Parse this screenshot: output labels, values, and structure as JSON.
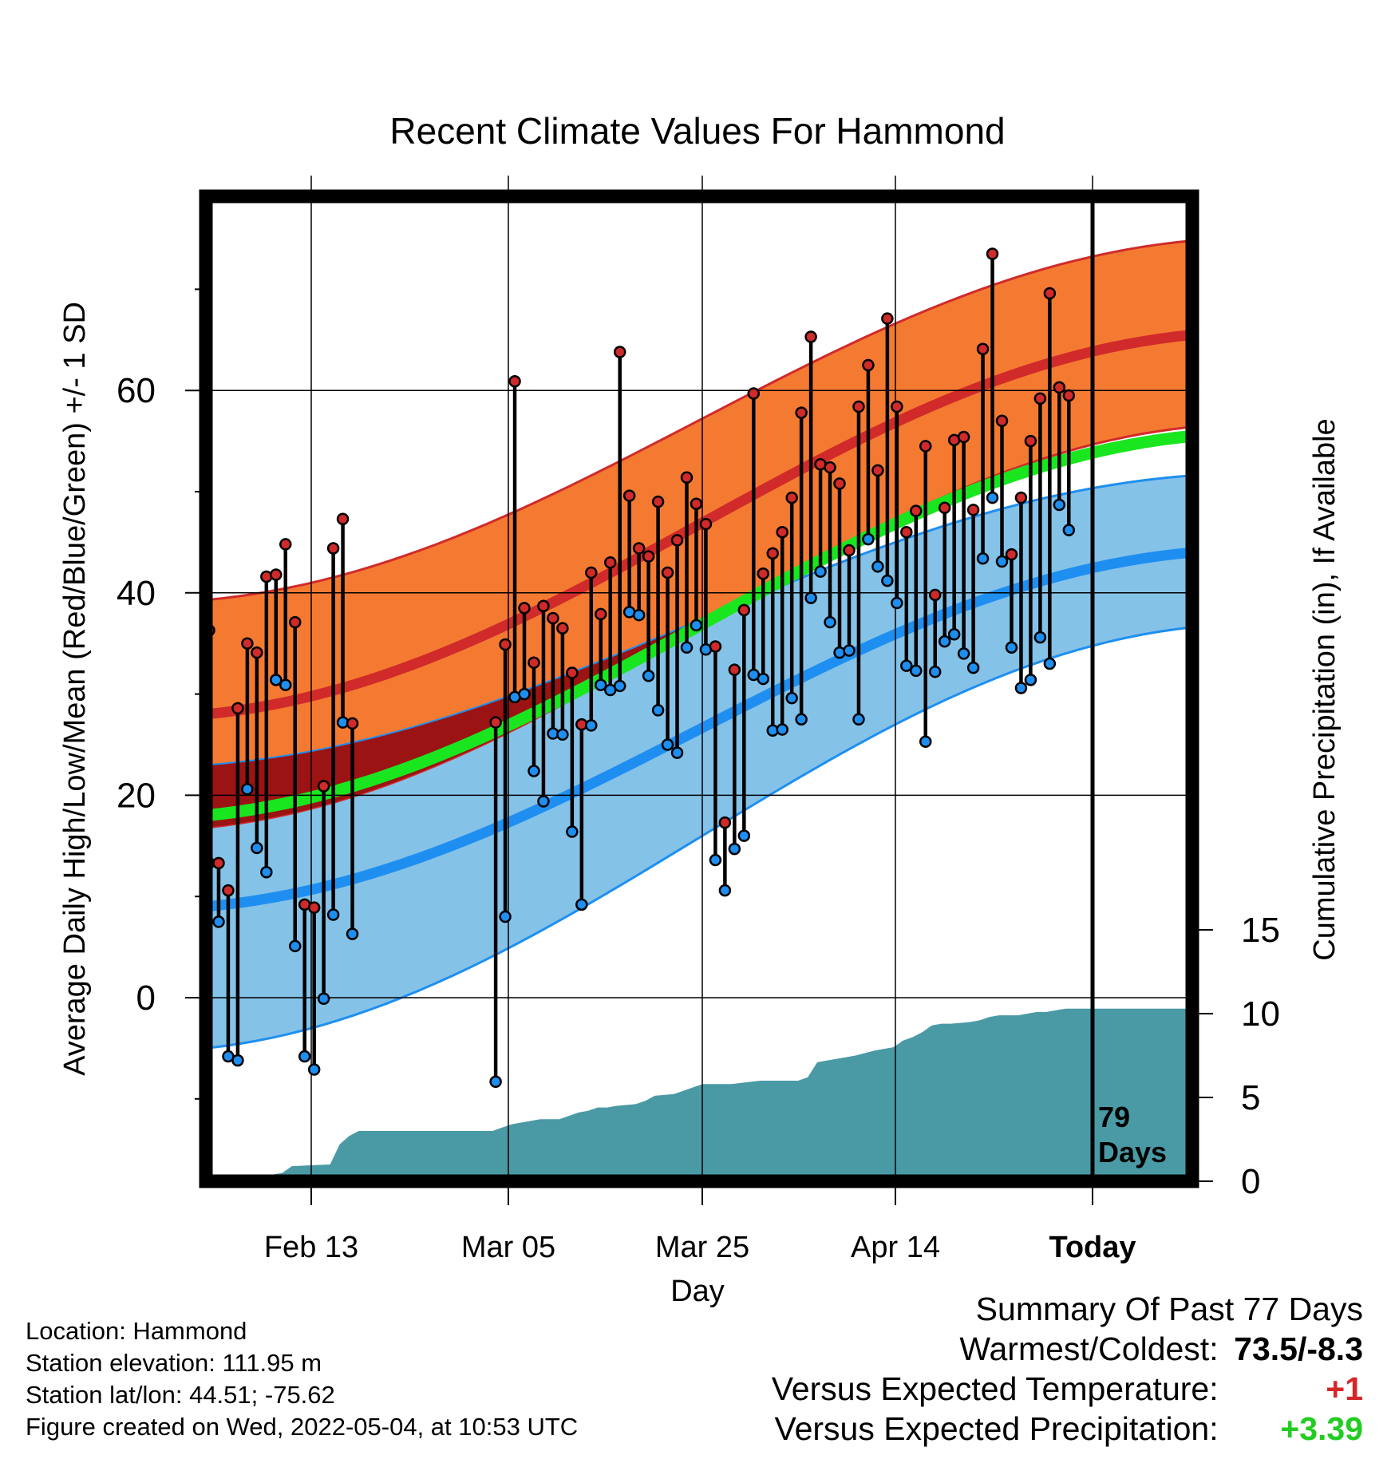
{
  "chart_data": {
    "type": "line",
    "title": "Recent Climate Values For Hammond",
    "xlabel": "Day",
    "ylabel": "Average Daily High/Low/Mean (Red/Blue/Green) +/- 1 SD",
    "y2label": "Cumulative Precipitation (in), If Available",
    "x_ticks": [
      "Feb 13",
      "Mar 05",
      "Mar 25",
      "Apr 14",
      "Today"
    ],
    "ylim": [
      -18,
      79
    ],
    "y_ticks": [
      0,
      20,
      40,
      60
    ],
    "y2lim": [
      0,
      35
    ],
    "y2_ticks": [
      0,
      5,
      10,
      15
    ],
    "today_marker": "79\nDays",
    "grid": true,
    "normals": {
      "high": {
        "start": 28.0,
        "end": 65.5
      },
      "high_upper": {
        "start": 39.3,
        "end": 74.8
      },
      "high_lower": {
        "start": 16.8,
        "end": 56.4
      },
      "low": {
        "start": 9.0,
        "end": 44.0
      },
      "low_upper": {
        "start": 23.0,
        "end": 51.6
      },
      "low_lower": {
        "start": -5.0,
        "end": 36.6
      },
      "mean": {
        "start": 18.0,
        "end": 55.5
      }
    },
    "daily": [
      {
        "day": 1,
        "high": 36.3,
        "low": 13.3
      },
      {
        "day": 2,
        "high": 13.3,
        "low": 7.5
      },
      {
        "day": 3,
        "high": 10.6,
        "low": -5.8
      },
      {
        "day": 4,
        "high": 28.6,
        "low": -6.2
      },
      {
        "day": 5,
        "high": 35.0,
        "low": 20.6
      },
      {
        "day": 6,
        "high": 34.1,
        "low": 14.8
      },
      {
        "day": 7,
        "high": 41.6,
        "low": 12.4
      },
      {
        "day": 8,
        "high": 41.8,
        "low": 31.4
      },
      {
        "day": 9,
        "high": 44.8,
        "low": 30.9
      },
      {
        "day": 10,
        "high": 37.1,
        "low": 5.1
      },
      {
        "day": 11,
        "high": 9.2,
        "low": -5.8
      },
      {
        "day": 12,
        "high": 8.9,
        "low": -7.1
      },
      {
        "day": 13,
        "high": 20.9,
        "low": -0.1
      },
      {
        "day": 14,
        "high": 44.4,
        "low": 8.2
      },
      {
        "day": 15,
        "high": 47.3,
        "low": 27.2
      },
      {
        "day": 16,
        "high": 27.1,
        "low": 6.3
      },
      {
        "day": 31,
        "high": 27.2,
        "low": -8.3
      },
      {
        "day": 32,
        "high": 34.9,
        "low": 8.0
      },
      {
        "day": 33,
        "high": 60.9,
        "low": 29.7
      },
      {
        "day": 34,
        "high": 38.5,
        "low": 30.0
      },
      {
        "day": 35,
        "high": 33.1,
        "low": 22.4
      },
      {
        "day": 36,
        "high": 38.7,
        "low": 19.4
      },
      {
        "day": 37,
        "high": 37.5,
        "low": 26.1
      },
      {
        "day": 38,
        "high": 36.5,
        "low": 26.0
      },
      {
        "day": 39,
        "high": 32.1,
        "low": 16.4
      },
      {
        "day": 40,
        "high": 27.0,
        "low": 9.2
      },
      {
        "day": 41,
        "high": 42.0,
        "low": 26.9
      },
      {
        "day": 42,
        "high": 37.9,
        "low": 30.9
      },
      {
        "day": 43,
        "high": 43.0,
        "low": 30.4
      },
      {
        "day": 44,
        "high": 63.8,
        "low": 30.8
      },
      {
        "day": 45,
        "high": 49.6,
        "low": 38.1
      },
      {
        "day": 46,
        "high": 44.4,
        "low": 37.8
      },
      {
        "day": 47,
        "high": 43.6,
        "low": 31.8
      },
      {
        "day": 48,
        "high": 49.0,
        "low": 28.4
      },
      {
        "day": 49,
        "high": 42.0,
        "low": 25.0
      },
      {
        "day": 50,
        "high": 45.2,
        "low": 24.2
      },
      {
        "day": 51,
        "high": 51.4,
        "low": 34.6
      },
      {
        "day": 52,
        "high": 48.8,
        "low": 36.8
      },
      {
        "day": 53,
        "high": 46.8,
        "low": 34.4
      },
      {
        "day": 54,
        "high": 34.7,
        "low": 13.6
      },
      {
        "day": 55,
        "high": 17.3,
        "low": 10.6
      },
      {
        "day": 56,
        "high": 32.4,
        "low": 14.7
      },
      {
        "day": 57,
        "high": 38.3,
        "low": 16.0
      },
      {
        "day": 58,
        "high": 59.7,
        "low": 31.9
      },
      {
        "day": 59,
        "high": 41.9,
        "low": 31.5
      },
      {
        "day": 60,
        "high": 43.9,
        "low": 26.4
      },
      {
        "day": 61,
        "high": 46.0,
        "low": 26.5
      },
      {
        "day": 62,
        "high": 49.4,
        "low": 29.6
      },
      {
        "day": 63,
        "high": 57.8,
        "low": 27.5
      },
      {
        "day": 64,
        "high": 65.3,
        "low": 39.5
      },
      {
        "day": 65,
        "high": 52.7,
        "low": 42.1
      },
      {
        "day": 66,
        "high": 52.4,
        "low": 37.1
      },
      {
        "day": 67,
        "high": 50.8,
        "low": 34.1
      },
      {
        "day": 68,
        "high": 44.2,
        "low": 34.3
      },
      {
        "day": 69,
        "high": 58.4,
        "low": 27.5
      },
      {
        "day": 70,
        "high": 62.5,
        "low": 45.3
      },
      {
        "day": 71,
        "high": 52.1,
        "low": 42.6
      },
      {
        "day": 72,
        "high": 67.1,
        "low": 41.2
      },
      {
        "day": 73,
        "high": 58.4,
        "low": 39.0
      },
      {
        "day": 74,
        "high": 46.0,
        "low": 32.8
      },
      {
        "day": 75,
        "high": 48.1,
        "low": 32.3
      },
      {
        "day": 76,
        "high": 54.5,
        "low": 25.3
      },
      {
        "day": 77,
        "high": 39.8,
        "low": 32.2
      },
      {
        "day": 78,
        "high": 48.4,
        "low": 35.2
      },
      {
        "day": 79,
        "high": 55.1,
        "low": 35.9
      },
      {
        "day": 80,
        "high": 55.4,
        "low": 34.0
      },
      {
        "day": 81,
        "high": 48.2,
        "low": 32.6
      },
      {
        "day": 82,
        "high": 64.1,
        "low": 43.4
      },
      {
        "day": 83,
        "high": 73.5,
        "low": 49.4
      },
      {
        "day": 84,
        "high": 57.0,
        "low": 43.1
      },
      {
        "day": 85,
        "high": 43.8,
        "low": 34.6
      },
      {
        "day": 86,
        "high": 49.4,
        "low": 30.6
      },
      {
        "day": 87,
        "high": 55.0,
        "low": 31.4
      },
      {
        "day": 88,
        "high": 59.2,
        "low": 35.6
      },
      {
        "day": 89,
        "high": 69.6,
        "low": 33.0
      },
      {
        "day": 90,
        "high": 60.3,
        "low": 48.7
      },
      {
        "day": 91,
        "high": 59.5,
        "low": 46.2
      }
    ],
    "precip_cumulative": [
      [
        0,
        0.2
      ],
      [
        1,
        0.4
      ],
      [
        7,
        0.4
      ],
      [
        8,
        0.5
      ],
      [
        9,
        0.9
      ],
      [
        13,
        1.0
      ],
      [
        14,
        2.2
      ],
      [
        15,
        2.7
      ],
      [
        16,
        3.0
      ],
      [
        30,
        3.0
      ],
      [
        31,
        3.2
      ],
      [
        32,
        3.4
      ],
      [
        33,
        3.5
      ],
      [
        34,
        3.6
      ],
      [
        35,
        3.7
      ],
      [
        37,
        3.7
      ],
      [
        38,
        3.9
      ],
      [
        39,
        4.1
      ],
      [
        40,
        4.2
      ],
      [
        41,
        4.4
      ],
      [
        42,
        4.4
      ],
      [
        43,
        4.5
      ],
      [
        45,
        4.6
      ],
      [
        46,
        4.8
      ],
      [
        47,
        5.1
      ],
      [
        49,
        5.2
      ],
      [
        50,
        5.4
      ],
      [
        51,
        5.6
      ],
      [
        52,
        5.8
      ],
      [
        53,
        5.8
      ],
      [
        55,
        5.8
      ],
      [
        58,
        6.0
      ],
      [
        62,
        6.0
      ],
      [
        63,
        6.2
      ],
      [
        64,
        7.1
      ],
      [
        65,
        7.2
      ],
      [
        67,
        7.4
      ],
      [
        68,
        7.5
      ],
      [
        70,
        7.8
      ],
      [
        72,
        8.0
      ],
      [
        73,
        8.4
      ],
      [
        74,
        8.6
      ],
      [
        75,
        8.9
      ],
      [
        76,
        9.3
      ],
      [
        77,
        9.4
      ],
      [
        78,
        9.4
      ],
      [
        80,
        9.5
      ],
      [
        81,
        9.6
      ],
      [
        82,
        9.8
      ],
      [
        83,
        9.9
      ],
      [
        85,
        9.9
      ],
      [
        86,
        10.0
      ],
      [
        87,
        10.1
      ],
      [
        88,
        10.1
      ],
      [
        89,
        10.2
      ],
      [
        90,
        10.3
      ],
      [
        91,
        10.3
      ],
      [
        92,
        10.3
      ]
    ]
  },
  "info": {
    "location": "Location: Hammond",
    "elevation": "Station elevation: 111.95 m",
    "latlon": "Station lat/lon: 44.51; -75.62",
    "created": "Figure created on Wed, 2022-05-04, at 10:53 UTC"
  },
  "summary": {
    "heading": "Summary Of Past 77 Days",
    "warmest_label": "Warmest/Coldest:",
    "warmest_value": "73.5/-8.3",
    "temp_label": "Versus Expected Temperature:",
    "temp_value": "+1",
    "temp_color": "#d62728",
    "precip_label": "Versus Expected Precipitation:",
    "precip_value": "+3.39",
    "precip_color": "#22cc22"
  },
  "colors": {
    "high_band": "#f47a32",
    "high_line": "#d12a2a",
    "overlap_band": "#9b1313",
    "low_band": "#85c2e8",
    "low_line": "#1e8ff0",
    "mean_line": "#19e61f",
    "precip_fill": "#4a9aa5",
    "high_point": "#d12a2a",
    "low_point": "#1e8ff0"
  }
}
